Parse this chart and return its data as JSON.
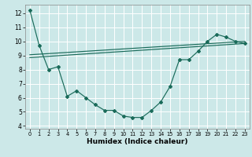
{
  "xlabel": "Humidex (Indice chaleur)",
  "bg_color": "#cce8e8",
  "line_color": "#1a6b5a",
  "grid_color": "#ffffff",
  "xlim": [
    -0.5,
    23.5
  ],
  "ylim": [
    3.8,
    12.6
  ],
  "xticks": [
    0,
    1,
    2,
    3,
    4,
    5,
    6,
    7,
    8,
    9,
    10,
    11,
    12,
    13,
    14,
    15,
    16,
    17,
    18,
    19,
    20,
    21,
    22,
    23
  ],
  "yticks": [
    4,
    5,
    6,
    7,
    8,
    9,
    10,
    11,
    12
  ],
  "line1_x": [
    0,
    1,
    2,
    3,
    4,
    5,
    6,
    7,
    8,
    9,
    10,
    11,
    12,
    13,
    14,
    15,
    16,
    17,
    18,
    19,
    20,
    21,
    22,
    23
  ],
  "line1_y": [
    12.2,
    9.7,
    8.0,
    8.2,
    6.1,
    6.5,
    6.0,
    5.5,
    5.1,
    5.1,
    4.7,
    4.6,
    4.6,
    5.1,
    5.7,
    6.8,
    8.7,
    8.7,
    9.3,
    10.0,
    10.5,
    10.3,
    10.0,
    9.85
  ],
  "line2_x": [
    0,
    23
  ],
  "line2_y": [
    8.85,
    9.85
  ],
  "line3_x": [
    0,
    23
  ],
  "line3_y": [
    9.05,
    10.0
  ]
}
